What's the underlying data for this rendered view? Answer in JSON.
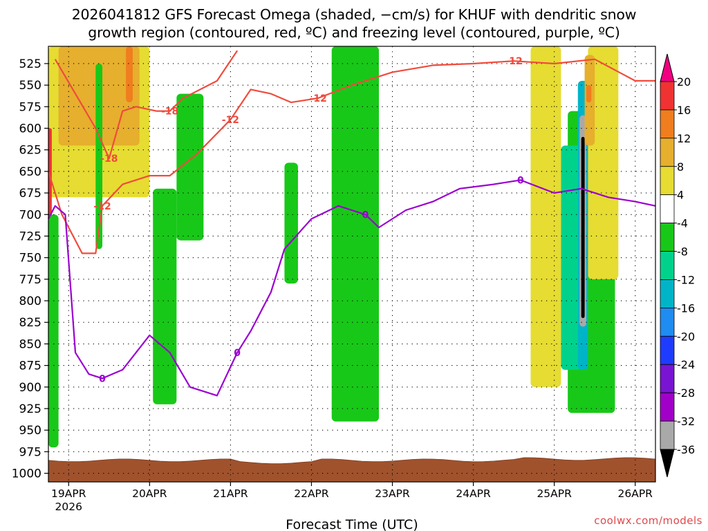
{
  "title_line1": "2026041812 GFS Forecast Omega (shaded, −cm/s) for KHUF with dendritic snow",
  "title_line2": "growth region (contoured, red, ºC) and freezing level (contoured, purple, ºC)",
  "credit": "coolwx.com/models",
  "chart_data": {
    "type": "heatmap",
    "title": "2026041812 GFS Forecast Omega (shaded, −cm/s) for KHUF with dendritic snow growth region (contoured, red, ºC) and freezing level (contoured, purple, ºC)",
    "xlabel": "Forecast Time (UTC)",
    "ylabel": "",
    "x_range_hours": [
      0,
      180
    ],
    "x_ticks": [
      {
        "hour": 6,
        "label": "19APR",
        "sublabel": "2026"
      },
      {
        "hour": 30,
        "label": "20APR",
        "sublabel": ""
      },
      {
        "hour": 54,
        "label": "21APR",
        "sublabel": ""
      },
      {
        "hour": 78,
        "label": "22APR",
        "sublabel": ""
      },
      {
        "hour": 102,
        "label": "23APR",
        "sublabel": ""
      },
      {
        "hour": 126,
        "label": "24APR",
        "sublabel": ""
      },
      {
        "hour": 150,
        "label": "25APR",
        "sublabel": ""
      },
      {
        "hour": 174,
        "label": "26APR",
        "sublabel": ""
      }
    ],
    "y_range_hpa": [
      1010,
      505
    ],
    "y_ticks": [
      525,
      550,
      575,
      600,
      625,
      650,
      675,
      700,
      725,
      750,
      775,
      800,
      825,
      850,
      875,
      900,
      925,
      950,
      975,
      1000
    ],
    "grid": true,
    "colorbar": {
      "levels": [
        "20",
        "16",
        "12",
        "8",
        "4",
        "-4",
        "-8",
        "-12",
        "-16",
        "-20",
        "-24",
        "-28",
        "-32",
        "-36"
      ],
      "colors": [
        "#f00080",
        "#f03232",
        "#f07d1e",
        "#e6af2d",
        "#e6dc32",
        "#ffffff",
        "#18c818",
        "#00d28c",
        "#00b4c8",
        "#1e8cf0",
        "#1e3cff",
        "#7814d2",
        "#a000c8",
        "#a9a9a9",
        "#000000"
      ]
    },
    "omega_regions": [
      {
        "band": "4 to 8",
        "hour_range": [
          0,
          30
        ],
        "p_range": [
          505,
          680
        ]
      },
      {
        "band": "8 to 12",
        "hour_range": [
          3,
          27
        ],
        "p_range": [
          505,
          620
        ]
      },
      {
        "band": "12 to 16",
        "hour_range": [
          23,
          25
        ],
        "p_range": [
          505,
          570
        ]
      },
      {
        "band": "16 to 20",
        "hour_range": [
          0,
          1
        ],
        "p_range": [
          600,
          710
        ]
      },
      {
        "band": "-4 to -8",
        "hour_range": [
          0,
          3
        ],
        "p_range": [
          700,
          970
        ]
      },
      {
        "band": "-4 to -8",
        "hour_range": [
          14,
          16
        ],
        "p_range": [
          525,
          740
        ]
      },
      {
        "band": "-4 to -8",
        "hour_range": [
          31,
          38
        ],
        "p_range": [
          670,
          920
        ]
      },
      {
        "band": "-4 to -8",
        "hour_range": [
          38,
          46
        ],
        "p_range": [
          560,
          730
        ]
      },
      {
        "band": "-4 to -8",
        "hour_range": [
          70,
          74
        ],
        "p_range": [
          640,
          780
        ]
      },
      {
        "band": "-4 to -8",
        "hour_range": [
          84,
          98
        ],
        "p_range": [
          505,
          940
        ]
      },
      {
        "band": "-4 to -8",
        "hour_range": [
          154,
          168
        ],
        "p_range": [
          580,
          930
        ]
      },
      {
        "band": "-8 to -12",
        "hour_range": [
          152,
          158
        ],
        "p_range": [
          620,
          880
        ]
      },
      {
        "band": "-12 to -16",
        "hour_range": [
          157,
          160
        ],
        "p_range": [
          545,
          880
        ]
      },
      {
        "band": "-32 to -36",
        "hour_range": [
          157.5,
          159.5
        ],
        "p_range": [
          585,
          830
        ]
      },
      {
        "band": "< -36",
        "hour_range": [
          158,
          159
        ],
        "p_range": [
          610,
          820
        ]
      },
      {
        "band": "4 to 8",
        "hour_range": [
          143,
          152
        ],
        "p_range": [
          505,
          900
        ]
      },
      {
        "band": "4 to 8",
        "hour_range": [
          160,
          169
        ],
        "p_range": [
          505,
          775
        ]
      },
      {
        "band": "8 to 12",
        "hour_range": [
          159,
          162
        ],
        "p_range": [
          515,
          620
        ]
      },
      {
        "band": "12 to 16",
        "hour_range": [
          159.5,
          161
        ],
        "p_range": [
          550,
          570
        ]
      }
    ],
    "dendritic_contours": [
      {
        "level": "-12",
        "labels": [
          "-12",
          "-12",
          "-12",
          "-12"
        ],
        "points": [
          [
            0,
            650
          ],
          [
            4,
            700
          ],
          [
            10,
            745
          ],
          [
            14,
            745
          ],
          [
            16,
            690
          ],
          [
            22,
            665
          ],
          [
            30,
            655
          ],
          [
            36,
            655
          ],
          [
            44,
            630
          ],
          [
            54,
            590
          ],
          [
            60,
            555
          ],
          [
            66,
            560
          ],
          [
            72,
            570
          ],
          [
            80,
            565
          ],
          [
            90,
            550
          ],
          [
            102,
            535
          ],
          [
            114,
            527
          ],
          [
            126,
            525
          ],
          [
            138,
            522
          ],
          [
            150,
            525
          ],
          [
            162,
            520
          ],
          [
            174,
            545
          ],
          [
            180,
            545
          ]
        ]
      },
      {
        "level": "-18",
        "labels": [
          "-18",
          "-18"
        ],
        "points": [
          [
            2,
            520
          ],
          [
            8,
            560
          ],
          [
            14,
            600
          ],
          [
            18,
            635
          ],
          [
            22,
            580
          ],
          [
            26,
            575
          ],
          [
            32,
            580
          ],
          [
            36,
            580
          ],
          [
            40,
            565
          ],
          [
            50,
            545
          ],
          [
            56,
            510
          ]
        ]
      }
    ],
    "freezing_level_contours": [
      {
        "level": "0",
        "labels": [
          "0",
          "0",
          "0",
          "0"
        ],
        "points": [
          [
            0,
            705
          ],
          [
            2,
            690
          ],
          [
            5,
            700
          ],
          [
            8,
            860
          ],
          [
            12,
            885
          ],
          [
            16,
            890
          ],
          [
            22,
            880
          ],
          [
            30,
            840
          ],
          [
            36,
            860
          ],
          [
            42,
            900
          ],
          [
            50,
            910
          ],
          [
            56,
            860
          ],
          [
            60,
            835
          ],
          [
            66,
            790
          ],
          [
            70,
            740
          ],
          [
            78,
            705
          ],
          [
            86,
            690
          ],
          [
            94,
            700
          ],
          [
            98,
            715
          ],
          [
            106,
            695
          ],
          [
            114,
            685
          ],
          [
            122,
            670
          ],
          [
            132,
            665
          ],
          [
            140,
            660
          ],
          [
            150,
            675
          ],
          [
            158,
            670
          ],
          [
            166,
            680
          ],
          [
            174,
            685
          ],
          [
            180,
            690
          ]
        ]
      }
    ],
    "surface_band_hpa": [
      985,
      1010
    ]
  }
}
